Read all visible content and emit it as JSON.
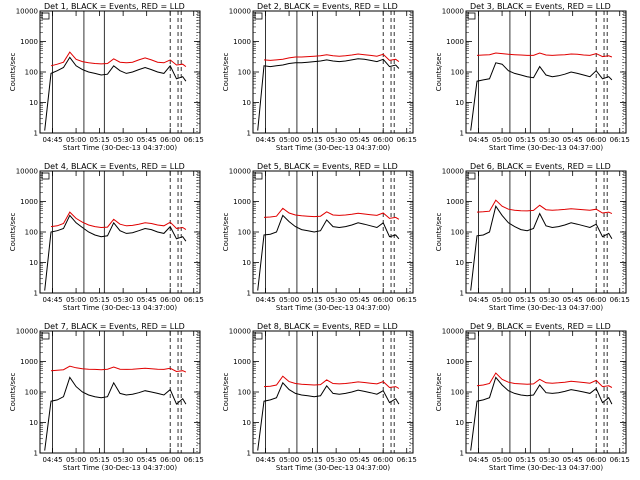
{
  "figure": {
    "detector_label": "Det",
    "ylabel": "Counts/sec",
    "xlabel": "Start Time (30-Dec-13 04:37:00)",
    "legend_text": "BLACK = Events, RED = LLD"
  },
  "colors": {
    "events": "#000000",
    "lld": "#e00000",
    "axes": "#000000",
    "background": "#ffffff"
  },
  "chart_data": [
    {
      "type": "line",
      "detector": "1",
      "title": "Det 1, BLACK = Events, RED = LLD",
      "xlabel": "Start Time (30-Dec-13 04:37:00)",
      "ylabel": "Counts/sec",
      "yscale": "log",
      "ylim": [
        1,
        10000
      ],
      "xticks": [
        "04:45",
        "05:00",
        "05:15",
        "05:30",
        "05:45",
        "06:00",
        "06:15"
      ],
      "yticks": [
        "1",
        "10",
        "100",
        "1000",
        "10000"
      ],
      "marker_lines": [
        "04:45",
        "05:05",
        "05:18",
        "06:00",
        "06:05",
        "06:07"
      ],
      "x": [
        "04:40",
        "04:44",
        "04:48",
        "04:52",
        "04:56",
        "05:00",
        "05:04",
        "05:08",
        "05:12",
        "05:16",
        "05:20",
        "05:24",
        "05:28",
        "05:32",
        "05:36",
        "05:40",
        "05:44",
        "05:48",
        "05:52",
        "05:56",
        "06:00",
        "06:04",
        "06:08",
        "06:10"
      ],
      "series": [
        {
          "name": "Events",
          "color": "#000000",
          "values": [
            1.2,
            90,
            110,
            140,
            300,
            160,
            120,
            100,
            90,
            80,
            85,
            160,
            110,
            90,
            100,
            120,
            140,
            120,
            100,
            90,
            160,
            60,
            70,
            50
          ]
        },
        {
          "name": "LLD",
          "color": "#e00000",
          "values": [
            null,
            160,
            180,
            210,
            450,
            260,
            220,
            200,
            190,
            185,
            190,
            270,
            210,
            200,
            210,
            250,
            290,
            250,
            210,
            200,
            250,
            170,
            180,
            150
          ]
        }
      ]
    },
    {
      "type": "line",
      "detector": "2",
      "title": "Det 2, BLACK = Events, RED = LLD",
      "xlabel": "Start Time (30-Dec-13 04:37:00)",
      "ylabel": "Counts/sec",
      "yscale": "log",
      "ylim": [
        1,
        10000
      ],
      "xticks": [
        "04:45",
        "05:00",
        "05:15",
        "05:30",
        "05:45",
        "06:00",
        "06:15"
      ],
      "yticks": [
        "1",
        "10",
        "100",
        "1000",
        "10000"
      ],
      "marker_lines": [
        "04:45",
        "05:05",
        "05:18",
        "06:00",
        "06:05",
        "06:07"
      ],
      "x": [
        "04:40",
        "04:44",
        "04:48",
        "04:52",
        "04:56",
        "05:00",
        "05:04",
        "05:08",
        "05:12",
        "05:16",
        "05:20",
        "05:24",
        "05:28",
        "05:32",
        "05:36",
        "05:40",
        "05:44",
        "05:48",
        "05:52",
        "05:56",
        "06:00",
        "06:04",
        "06:08",
        "06:10"
      ],
      "series": [
        {
          "name": "Events",
          "color": "#000000",
          "values": [
            1.2,
            160,
            150,
            160,
            170,
            190,
            200,
            200,
            210,
            220,
            230,
            250,
            230,
            220,
            230,
            250,
            270,
            260,
            240,
            220,
            260,
            150,
            170,
            130
          ]
        },
        {
          "name": "LLD",
          "color": "#e00000",
          "values": [
            null,
            250,
            240,
            250,
            260,
            290,
            310,
            310,
            320,
            330,
            340,
            370,
            340,
            330,
            340,
            360,
            390,
            370,
            350,
            330,
            380,
            240,
            260,
            220
          ]
        }
      ]
    },
    {
      "type": "line",
      "detector": "3",
      "title": "Det 3, BLACK = Events, RED = LLD",
      "xlabel": "Start Time (30-Dec-13 04:37:00)",
      "ylabel": "Counts/sec",
      "yscale": "log",
      "ylim": [
        1,
        10000
      ],
      "xticks": [
        "04:45",
        "05:00",
        "05:15",
        "05:30",
        "05:45",
        "06:00",
        "06:15"
      ],
      "yticks": [
        "1",
        "10",
        "100",
        "1000",
        "10000"
      ],
      "marker_lines": [
        "04:45",
        "05:05",
        "05:18",
        "06:00",
        "06:05",
        "06:07"
      ],
      "x": [
        "04:40",
        "04:44",
        "04:48",
        "04:52",
        "04:56",
        "05:00",
        "05:04",
        "05:08",
        "05:12",
        "05:16",
        "05:20",
        "05:24",
        "05:28",
        "05:32",
        "05:36",
        "05:40",
        "05:44",
        "05:48",
        "05:52",
        "05:56",
        "06:00",
        "06:04",
        "06:08",
        "06:10"
      ],
      "series": [
        {
          "name": "Events",
          "color": "#000000",
          "values": [
            1.2,
            50,
            55,
            60,
            200,
            180,
            110,
            90,
            80,
            70,
            65,
            150,
            80,
            70,
            75,
            85,
            100,
            90,
            80,
            70,
            110,
            60,
            70,
            55
          ]
        },
        {
          "name": "LLD",
          "color": "#e00000",
          "values": [
            null,
            350,
            360,
            370,
            420,
            400,
            380,
            370,
            360,
            350,
            350,
            420,
            360,
            350,
            360,
            370,
            390,
            380,
            360,
            350,
            400,
            320,
            340,
            310
          ]
        }
      ]
    },
    {
      "type": "line",
      "detector": "4",
      "title": "Det 4, BLACK = Events, RED = LLD",
      "xlabel": "Start Time (30-Dec-13 04:37:00)",
      "ylabel": "Counts/sec",
      "yscale": "log",
      "ylim": [
        1,
        10000
      ],
      "xticks": [
        "04:45",
        "05:00",
        "05:15",
        "05:30",
        "05:45",
        "06:00",
        "06:15"
      ],
      "yticks": [
        "1",
        "10",
        "100",
        "1000",
        "10000"
      ],
      "marker_lines": [
        "04:45",
        "05:05",
        "05:18",
        "06:00",
        "06:05",
        "06:07"
      ],
      "x": [
        "04:40",
        "04:44",
        "04:48",
        "04:52",
        "04:56",
        "05:00",
        "05:04",
        "05:08",
        "05:12",
        "05:16",
        "05:20",
        "05:24",
        "05:28",
        "05:32",
        "05:36",
        "05:40",
        "05:44",
        "05:48",
        "05:52",
        "05:56",
        "06:00",
        "06:04",
        "06:08",
        "06:10"
      ],
      "series": [
        {
          "name": "Events",
          "color": "#000000",
          "values": [
            1.2,
            100,
            110,
            130,
            350,
            200,
            140,
            100,
            80,
            70,
            75,
            200,
            110,
            90,
            95,
            110,
            130,
            120,
            100,
            90,
            150,
            60,
            70,
            50
          ]
        },
        {
          "name": "LLD",
          "color": "#e00000",
          "values": [
            null,
            150,
            160,
            190,
            450,
            280,
            210,
            170,
            150,
            140,
            145,
            260,
            180,
            160,
            165,
            180,
            200,
            190,
            170,
            160,
            210,
            130,
            140,
            120
          ]
        }
      ]
    },
    {
      "type": "line",
      "detector": "5",
      "title": "Det 5, BLACK = Events, RED = LLD",
      "xlabel": "Start Time (30-Dec-13 04:37:00)",
      "ylabel": "Counts/sec",
      "yscale": "log",
      "ylim": [
        1,
        10000
      ],
      "xticks": [
        "04:45",
        "05:00",
        "05:15",
        "05:30",
        "05:45",
        "06:00",
        "06:15"
      ],
      "yticks": [
        "1",
        "10",
        "100",
        "1000",
        "10000"
      ],
      "marker_lines": [
        "04:45",
        "05:05",
        "05:18",
        "06:00",
        "06:05",
        "06:07"
      ],
      "x": [
        "04:40",
        "04:44",
        "04:48",
        "04:52",
        "04:56",
        "05:00",
        "05:04",
        "05:08",
        "05:12",
        "05:16",
        "05:20",
        "05:24",
        "05:28",
        "05:32",
        "05:36",
        "05:40",
        "05:44",
        "05:48",
        "05:52",
        "05:56",
        "06:00",
        "06:04",
        "06:08",
        "06:10"
      ],
      "series": [
        {
          "name": "Events",
          "color": "#000000",
          "values": [
            1.2,
            80,
            85,
            100,
            350,
            220,
            150,
            120,
            110,
            100,
            110,
            250,
            150,
            140,
            150,
            170,
            200,
            180,
            160,
            140,
            200,
            70,
            80,
            60
          ]
        },
        {
          "name": "LLD",
          "color": "#e00000",
          "values": [
            null,
            300,
            310,
            330,
            600,
            420,
            360,
            340,
            330,
            320,
            330,
            460,
            360,
            350,
            360,
            380,
            410,
            390,
            370,
            350,
            420,
            280,
            300,
            260
          ]
        }
      ]
    },
    {
      "type": "line",
      "detector": "6",
      "title": "Det 6, BLACK = Events, RED = LLD",
      "xlabel": "Start Time (30-Dec-13 04:37:00)",
      "ylabel": "Counts/sec",
      "yscale": "log",
      "ylim": [
        1,
        10000
      ],
      "xticks": [
        "04:45",
        "05:00",
        "05:15",
        "05:30",
        "05:45",
        "06:00",
        "06:15"
      ],
      "yticks": [
        "1",
        "10",
        "100",
        "1000",
        "10000"
      ],
      "marker_lines": [
        "04:45",
        "05:05",
        "05:18",
        "06:00",
        "06:05",
        "06:07"
      ],
      "x": [
        "04:40",
        "04:44",
        "04:48",
        "04:52",
        "04:56",
        "05:00",
        "05:04",
        "05:08",
        "05:12",
        "05:16",
        "05:20",
        "05:24",
        "05:28",
        "05:32",
        "05:36",
        "05:40",
        "05:44",
        "05:48",
        "05:52",
        "05:56",
        "06:00",
        "06:04",
        "06:08",
        "06:10"
      ],
      "series": [
        {
          "name": "Events",
          "color": "#000000",
          "values": [
            1.2,
            75,
            80,
            100,
            700,
            350,
            200,
            150,
            120,
            110,
            130,
            400,
            160,
            140,
            150,
            170,
            200,
            180,
            160,
            140,
            180,
            70,
            90,
            60
          ]
        },
        {
          "name": "LLD",
          "color": "#e00000",
          "values": [
            null,
            450,
            460,
            480,
            1100,
            700,
            560,
            520,
            500,
            490,
            510,
            750,
            540,
            520,
            530,
            550,
            580,
            560,
            540,
            520,
            560,
            420,
            450,
            400
          ]
        }
      ]
    },
    {
      "type": "line",
      "detector": "7",
      "title": "Det 7, BLACK = Events, RED = LLD",
      "xlabel": "Start Time (30-Dec-13 04:37:00)",
      "ylabel": "Counts/sec",
      "yscale": "log",
      "ylim": [
        1,
        10000
      ],
      "xticks": [
        "04:45",
        "05:00",
        "05:15",
        "05:30",
        "05:45",
        "06:00",
        "06:15"
      ],
      "yticks": [
        "1",
        "10",
        "100",
        "1000",
        "10000"
      ],
      "marker_lines": [
        "04:45",
        "05:05",
        "05:18",
        "06:00",
        "06:05",
        "06:07"
      ],
      "x": [
        "04:40",
        "04:44",
        "04:48",
        "04:52",
        "04:56",
        "05:00",
        "05:04",
        "05:08",
        "05:12",
        "05:16",
        "05:20",
        "05:24",
        "05:28",
        "05:32",
        "05:36",
        "05:40",
        "05:44",
        "05:48",
        "05:52",
        "05:56",
        "06:00",
        "06:04",
        "06:08",
        "06:10"
      ],
      "series": [
        {
          "name": "Events",
          "color": "#000000",
          "values": [
            1.2,
            50,
            55,
            70,
            300,
            150,
            100,
            80,
            70,
            65,
            70,
            200,
            90,
            80,
            85,
            95,
            110,
            100,
            90,
            80,
            120,
            40,
            60,
            40
          ]
        },
        {
          "name": "LLD",
          "color": "#e00000",
          "values": [
            null,
            500,
            520,
            540,
            700,
            620,
            580,
            560,
            550,
            540,
            560,
            660,
            560,
            550,
            560,
            580,
            600,
            580,
            560,
            550,
            600,
            470,
            500,
            450
          ]
        }
      ]
    },
    {
      "type": "line",
      "detector": "8",
      "title": "Det 8, BLACK = Events, RED = LLD",
      "xlabel": "Start Time (30-Dec-13 04:37:00)",
      "ylabel": "Counts/sec",
      "yscale": "log",
      "ylim": [
        1,
        10000
      ],
      "xticks": [
        "04:45",
        "05:00",
        "05:15",
        "05:30",
        "05:45",
        "06:00",
        "06:15"
      ],
      "yticks": [
        "1",
        "10",
        "100",
        "1000",
        "10000"
      ],
      "marker_lines": [
        "04:45",
        "05:05",
        "05:18",
        "06:00",
        "06:05",
        "06:07"
      ],
      "x": [
        "04:40",
        "04:44",
        "04:48",
        "04:52",
        "04:56",
        "05:00",
        "05:04",
        "05:08",
        "05:12",
        "05:16",
        "05:20",
        "05:24",
        "05:28",
        "05:32",
        "05:36",
        "05:40",
        "05:44",
        "05:48",
        "05:52",
        "05:56",
        "06:00",
        "06:04",
        "06:08",
        "06:10"
      ],
      "series": [
        {
          "name": "Events",
          "color": "#000000",
          "values": [
            1.2,
            50,
            55,
            65,
            200,
            120,
            90,
            80,
            75,
            70,
            75,
            160,
            90,
            85,
            90,
            100,
            115,
            105,
            95,
            85,
            110,
            45,
            60,
            40
          ]
        },
        {
          "name": "LLD",
          "color": "#e00000",
          "values": [
            null,
            150,
            155,
            170,
            330,
            220,
            190,
            180,
            175,
            170,
            175,
            250,
            190,
            185,
            190,
            200,
            215,
            205,
            195,
            185,
            220,
            140,
            150,
            130
          ]
        }
      ]
    },
    {
      "type": "line",
      "detector": "9",
      "title": "Det 9, BLACK = Events, RED = LLD",
      "xlabel": "Start Time (30-Dec-13 04:37:00)",
      "ylabel": "Counts/sec",
      "yscale": "log",
      "ylim": [
        1,
        10000
      ],
      "xticks": [
        "04:45",
        "05:00",
        "05:15",
        "05:30",
        "05:45",
        "06:00",
        "06:15"
      ],
      "yticks": [
        "1",
        "10",
        "100",
        "1000",
        "10000"
      ],
      "marker_lines": [
        "04:45",
        "05:05",
        "05:18",
        "06:00",
        "06:05",
        "06:07"
      ],
      "x": [
        "04:40",
        "04:44",
        "04:48",
        "04:52",
        "04:56",
        "05:00",
        "05:04",
        "05:08",
        "05:12",
        "05:16",
        "05:20",
        "05:24",
        "05:28",
        "05:32",
        "05:36",
        "05:40",
        "05:44",
        "05:48",
        "05:52",
        "05:56",
        "06:00",
        "06:04",
        "06:08",
        "06:10"
      ],
      "series": [
        {
          "name": "Events",
          "color": "#000000",
          "values": [
            1.2,
            50,
            55,
            65,
            300,
            170,
            110,
            90,
            80,
            75,
            80,
            170,
            95,
            90,
            95,
            105,
            120,
            110,
            100,
            90,
            130,
            45,
            65,
            40
          ]
        },
        {
          "name": "LLD",
          "color": "#e00000",
          "values": [
            null,
            160,
            170,
            190,
            420,
            260,
            210,
            190,
            185,
            180,
            185,
            260,
            200,
            195,
            200,
            210,
            225,
            215,
            205,
            195,
            240,
            150,
            160,
            140
          ]
        }
      ]
    }
  ]
}
